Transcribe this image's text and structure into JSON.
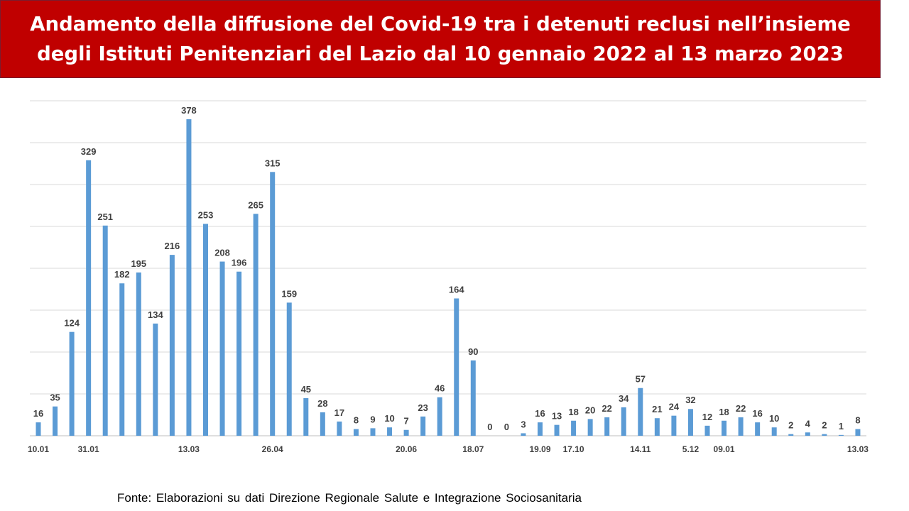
{
  "title": "Andamento della diffusione del Covid-19 tra i detenuti reclusi nell’insieme\ndegli Istituti Penitenziari del Lazio dal 10 gennaio 2022 al 13 marzo 2023",
  "source": "Fonte: Elaborazioni su dati Direzione Regionale Salute e Integrazione Sociosanitaria",
  "colors": {
    "bar": "#5b9bd5",
    "title_bg": "#c00000",
    "grid": "#d9d9d9"
  },
  "chart_data": {
    "type": "bar",
    "title": "Andamento della diffusione del Covid-19 tra i detenuti reclusi nell’insieme degli Istituti Penitenziari del Lazio dal 10 gennaio 2022 al 13 marzo 2023",
    "xlabel": "",
    "ylabel": "",
    "ylim": [
      0,
      400
    ],
    "grid": true,
    "values": [
      16,
      35,
      124,
      329,
      251,
      182,
      195,
      134,
      216,
      378,
      253,
      208,
      196,
      265,
      315,
      159,
      45,
      28,
      17,
      8,
      9,
      10,
      7,
      23,
      46,
      164,
      90,
      0,
      0,
      3,
      16,
      13,
      18,
      20,
      22,
      34,
      57,
      21,
      24,
      32,
      12,
      18,
      22,
      16,
      10,
      2,
      4,
      2,
      1,
      8
    ],
    "tick_labels": [
      {
        "index": 0,
        "label": "10.01"
      },
      {
        "index": 3,
        "label": "31.01"
      },
      {
        "index": 9,
        "label": "13.03"
      },
      {
        "index": 14,
        "label": "26.04"
      },
      {
        "index": 22,
        "label": "20.06"
      },
      {
        "index": 26,
        "label": "18.07"
      },
      {
        "index": 30,
        "label": "19.09"
      },
      {
        "index": 32,
        "label": "17.10"
      },
      {
        "index": 36,
        "label": "14.11"
      },
      {
        "index": 39,
        "label": "5.12"
      },
      {
        "index": 41,
        "label": "09.01"
      },
      {
        "index": 49,
        "label": "13.03"
      }
    ]
  }
}
